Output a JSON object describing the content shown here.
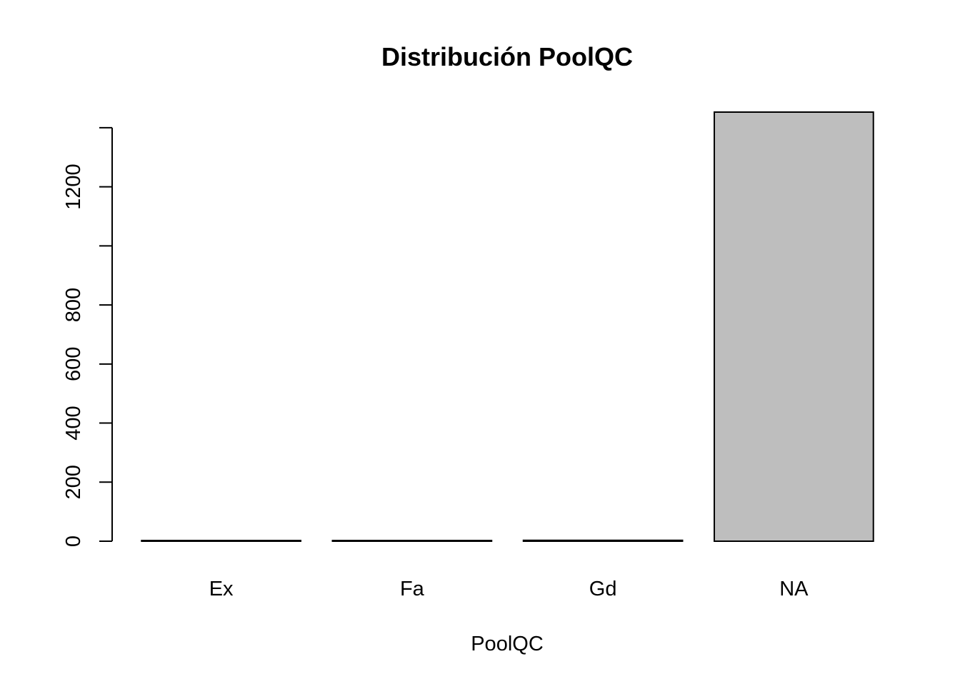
{
  "chart_data": {
    "type": "bar",
    "title": "Distribución PoolQC",
    "xlabel": "PoolQC",
    "ylabel": "",
    "categories": [
      "Ex",
      "Fa",
      "Gd",
      "NA"
    ],
    "values": [
      2,
      2,
      3,
      1453
    ],
    "yticks": [
      0,
      200,
      400,
      600,
      800,
      1000,
      1200,
      1400
    ],
    "ytick_labels": [
      "0",
      "200",
      "400",
      "600",
      "800",
      "",
      "1200",
      ""
    ],
    "ylim": [
      0,
      1453
    ],
    "bar_color": "#bebebe",
    "border_color": "#000000",
    "grid": false,
    "legend": "none"
  }
}
